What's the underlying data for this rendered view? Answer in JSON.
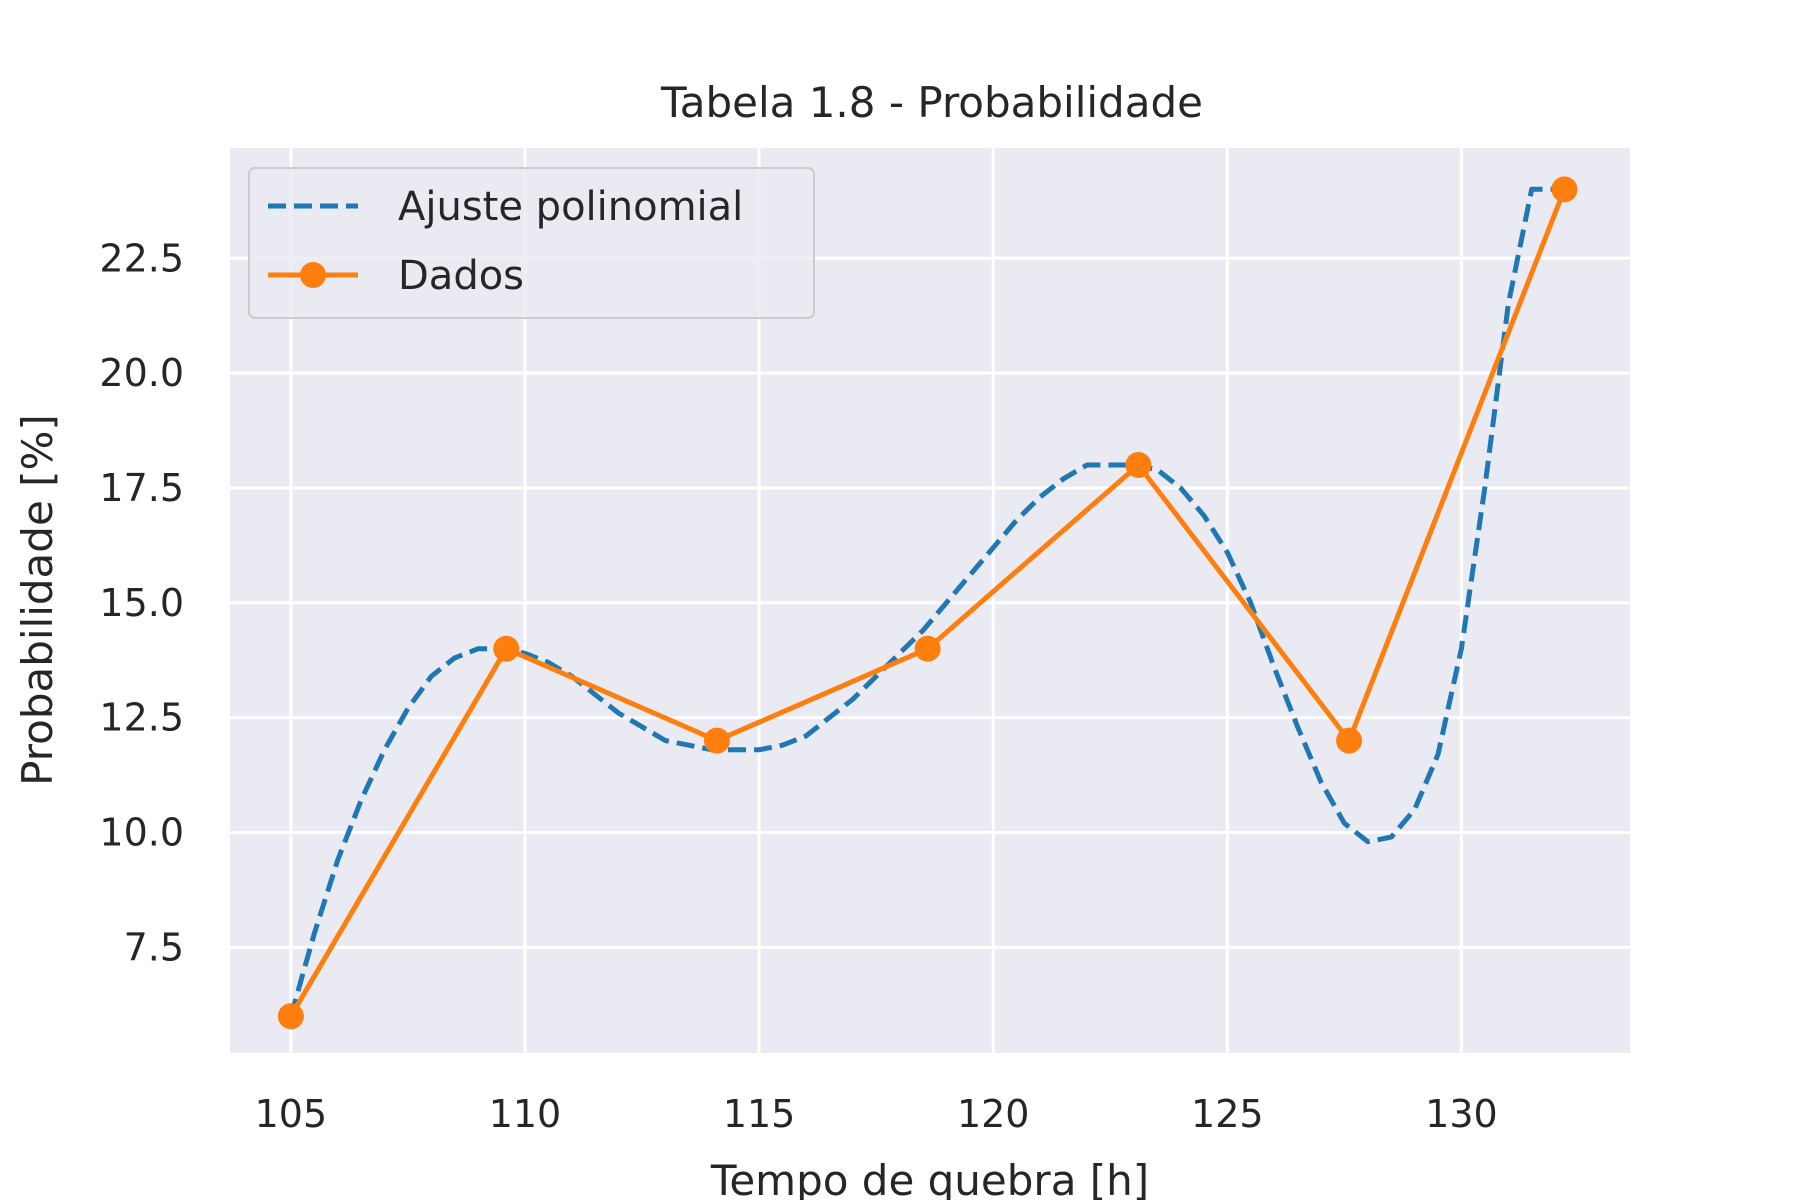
{
  "chart_data": {
    "type": "line",
    "title": "Tabela 1.8 - Probabilidade",
    "xlabel": "Tempo de quebra [h]",
    "ylabel": "Probabilidade [%]",
    "xlim": [
      103.7,
      133.6
    ],
    "ylim": [
      5.2,
      24.9
    ],
    "xticks": [
      105,
      110,
      115,
      120,
      125,
      130
    ],
    "yticks": [
      7.5,
      10.0,
      12.5,
      15.0,
      17.5,
      20.0,
      22.5
    ],
    "xtick_labels": [
      "105",
      "110",
      "115",
      "120",
      "125",
      "130"
    ],
    "ytick_labels": [
      "7.5",
      "10.0",
      "12.5",
      "15.0",
      "17.5",
      "20.0",
      "22.5"
    ],
    "grid": true,
    "legend_position": "top-left",
    "series": [
      {
        "name": "Ajuste polinomial",
        "style": "dashed",
        "color": "#1f77b4",
        "x": [
          105.0,
          105.5,
          106.0,
          106.5,
          107.0,
          107.5,
          108.0,
          108.5,
          109.0,
          109.5,
          110.0,
          110.5,
          111.0,
          111.5,
          112.0,
          112.5,
          113.0,
          113.5,
          114.0,
          114.5,
          115.0,
          115.5,
          116.0,
          116.5,
          117.0,
          117.5,
          118.0,
          118.5,
          119.0,
          119.5,
          120.0,
          120.5,
          121.0,
          121.5,
          122.0,
          122.5,
          123.0,
          123.5,
          124.0,
          124.5,
          125.0,
          125.5,
          126.0,
          126.5,
          127.0,
          127.5,
          128.0,
          128.5,
          129.0,
          129.5,
          130.0,
          130.5,
          131.0,
          131.5,
          132.0,
          132.2
        ],
        "values": [
          6.0,
          7.8,
          9.4,
          10.7,
          11.8,
          12.7,
          13.4,
          13.8,
          14.0,
          14.0,
          13.9,
          13.7,
          13.4,
          13.0,
          12.6,
          12.3,
          12.0,
          11.9,
          11.8,
          11.8,
          11.8,
          11.9,
          12.1,
          12.5,
          12.9,
          13.4,
          13.9,
          14.4,
          15.0,
          15.6,
          16.2,
          16.8,
          17.3,
          17.7,
          18.0,
          18.0,
          18.0,
          17.9,
          17.5,
          16.9,
          16.1,
          15.0,
          13.6,
          12.3,
          11.1,
          10.2,
          9.8,
          9.9,
          10.5,
          11.7,
          14.0,
          17.5,
          21.5,
          24.0,
          24.0,
          24.0
        ]
      },
      {
        "name": "Dados",
        "style": "solid-markers",
        "color": "#ff7f0e",
        "x": [
          105.0,
          109.6,
          114.1,
          118.6,
          123.1,
          127.6,
          132.2
        ],
        "values": [
          6.0,
          14.0,
          12.0,
          14.0,
          18.0,
          12.0,
          24.0
        ]
      }
    ]
  }
}
